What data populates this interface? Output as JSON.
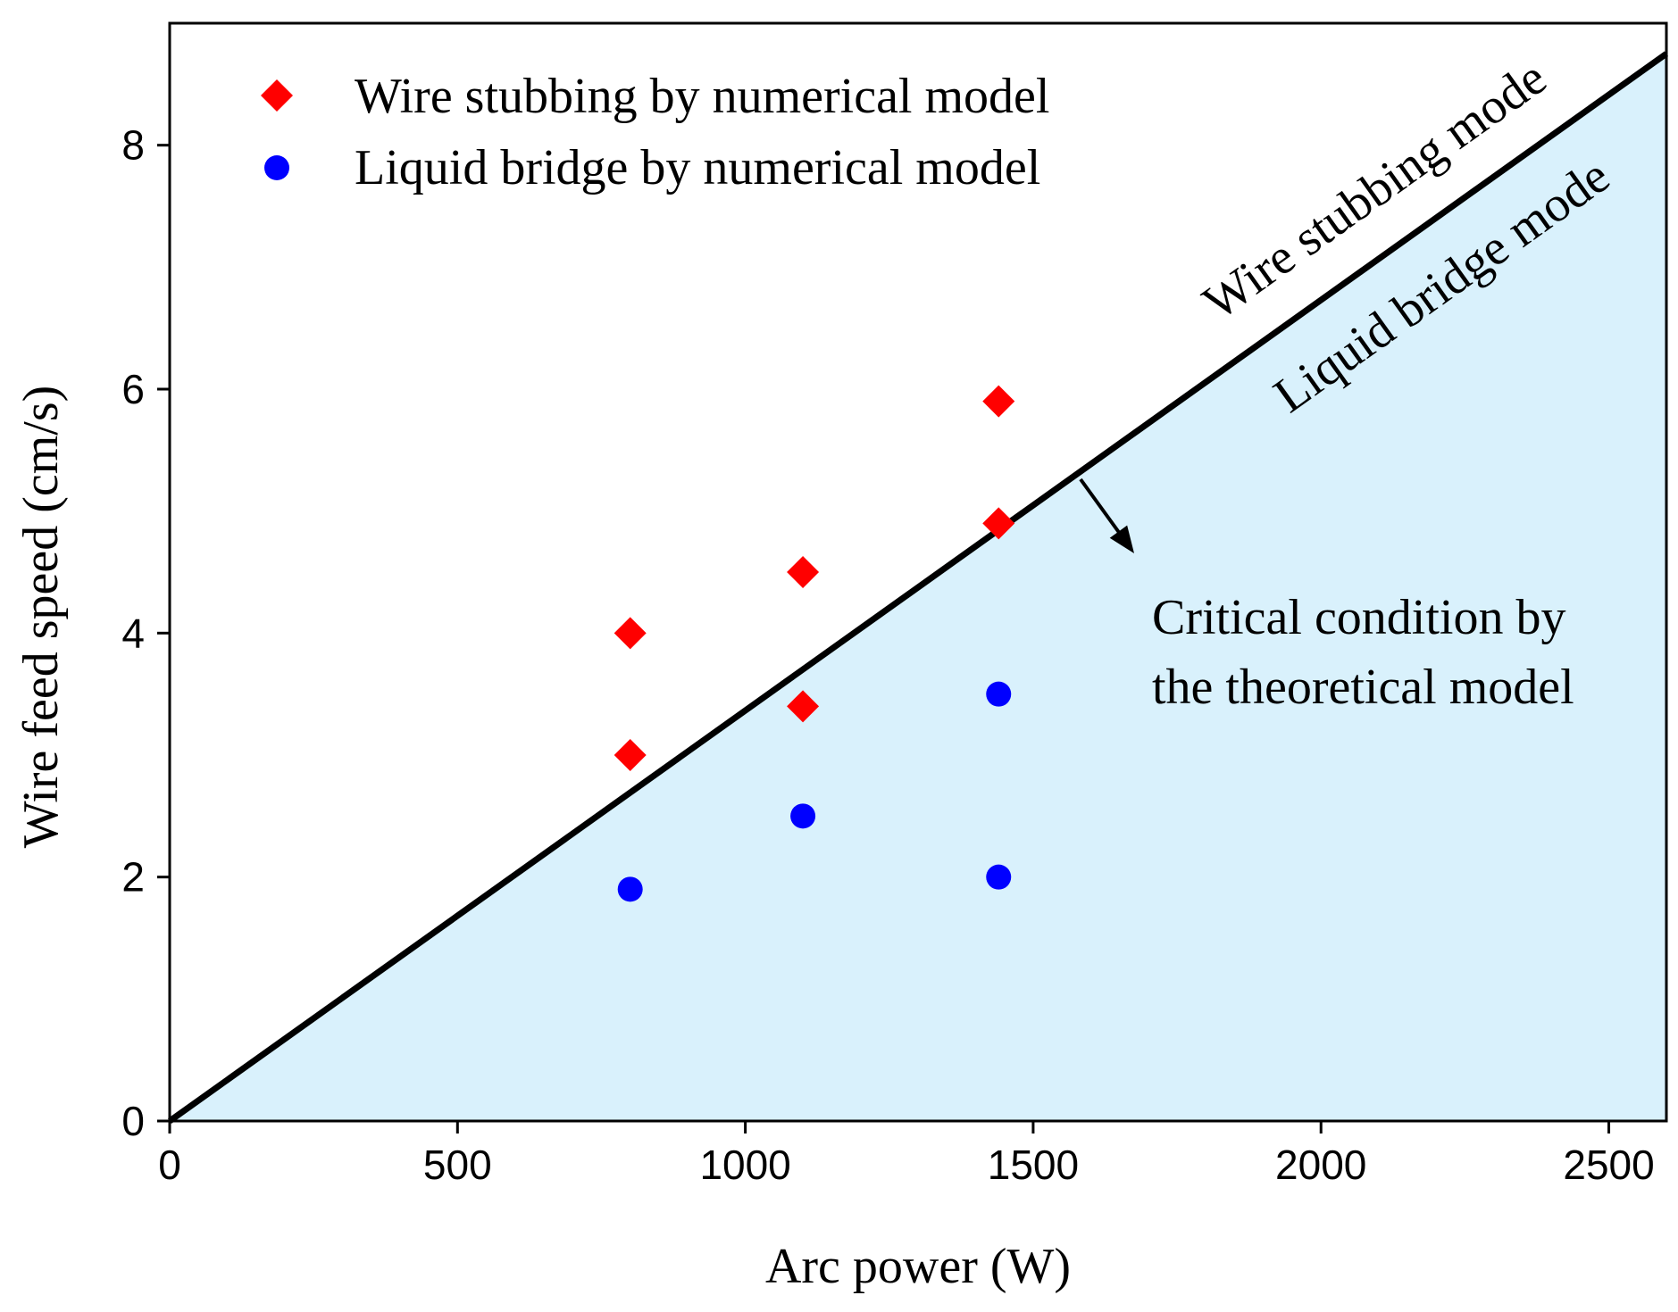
{
  "chart_data": {
    "type": "scatter",
    "title": "",
    "xlabel": "Arc power (W)",
    "ylabel": "Wire feed speed (cm/s)",
    "xlim": [
      0,
      2600
    ],
    "ylim": [
      0,
      9
    ],
    "x_ticks": [
      0,
      500,
      1000,
      1500,
      2000,
      2500
    ],
    "y_ticks": [
      0,
      2,
      4,
      6,
      8
    ],
    "grid": false,
    "legend_position": "top-left",
    "series": [
      {
        "name": "Wire stubbing by numerical model",
        "marker": "diamond",
        "color": "#ff0000",
        "points": [
          {
            "x": 800,
            "y": 4.0
          },
          {
            "x": 800,
            "y": 3.0
          },
          {
            "x": 1100,
            "y": 4.5
          },
          {
            "x": 1100,
            "y": 3.4
          },
          {
            "x": 1440,
            "y": 5.9
          },
          {
            "x": 1440,
            "y": 4.9
          }
        ]
      },
      {
        "name": "Liquid bridge by numerical model",
        "marker": "circle",
        "color": "#0000ff",
        "points": [
          {
            "x": 800,
            "y": 1.9
          },
          {
            "x": 1100,
            "y": 2.5
          },
          {
            "x": 1440,
            "y": 3.5
          },
          {
            "x": 1440,
            "y": 2.0
          }
        ]
      }
    ],
    "critical_line": {
      "label": "Critical condition by the theoretical model",
      "label_lines": [
        "Critical condition by",
        "the theoretical model"
      ],
      "x": [
        0,
        2600
      ],
      "y": [
        0,
        8.75
      ],
      "color": "#000000",
      "fill_below_color": "#d9f1fc"
    },
    "region_labels": {
      "upper": "Wire stubbing mode",
      "lower": "Liquid bridge mode"
    }
  }
}
